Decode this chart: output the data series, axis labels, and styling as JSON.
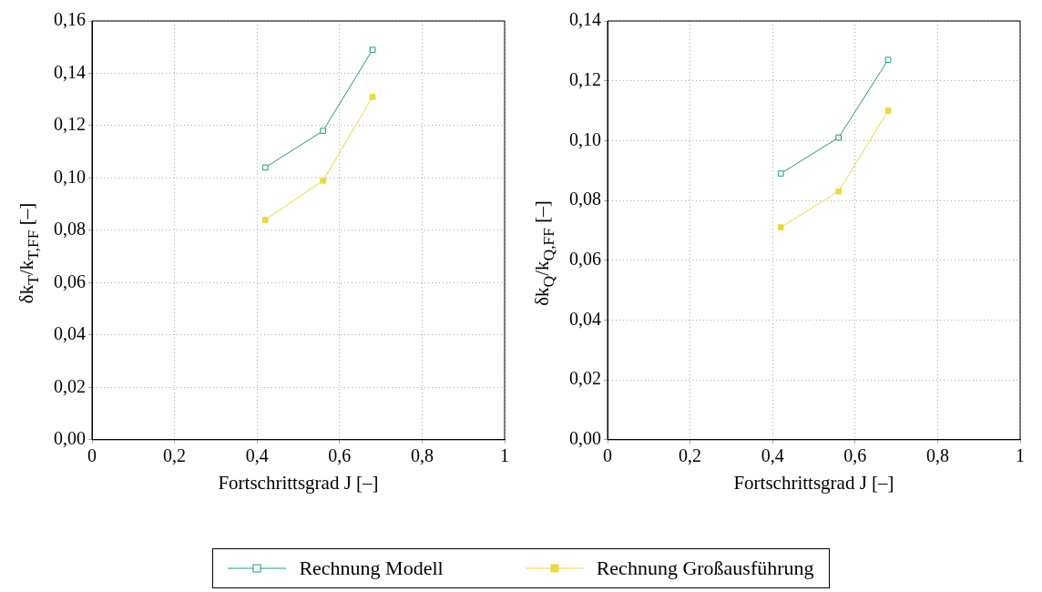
{
  "chart_data": [
    {
      "type": "line",
      "xlabel": "Fortschrittsgrad J [–]",
      "ylabel": "δk$_{T}$/k$_{T,FF}$ [–]",
      "x": [
        0.42,
        0.56,
        0.68
      ],
      "xlim": [
        0,
        1
      ],
      "xticks": [
        {
          "value": 0,
          "label": "0"
        },
        {
          "value": 0.2,
          "label": "0,2"
        },
        {
          "value": 0.4,
          "label": "0,4"
        },
        {
          "value": 0.6,
          "label": "0,6"
        },
        {
          "value": 0.8,
          "label": "0,8"
        },
        {
          "value": 1,
          "label": "1"
        }
      ],
      "ylim": [
        0,
        0.16
      ],
      "yticks": [
        {
          "value": 0,
          "label": "0,00"
        },
        {
          "value": 0.02,
          "label": "0,02"
        },
        {
          "value": 0.04,
          "label": "0,04"
        },
        {
          "value": 0.06,
          "label": "0,06"
        },
        {
          "value": 0.08,
          "label": "0,08"
        },
        {
          "value": 0.1,
          "label": "0,10"
        },
        {
          "value": 0.12,
          "label": "0,12"
        },
        {
          "value": 0.14,
          "label": "0,14"
        },
        {
          "value": 0.16,
          "label": "0,16"
        }
      ],
      "grid": true,
      "marker": "square",
      "legend": "bottom",
      "series": [
        {
          "name": "Rechnung Modell",
          "color": "#1a9e72",
          "values": [
            0.104,
            0.118,
            0.149
          ]
        },
        {
          "name": "Rechnung Großausführung",
          "color": "#ead93c",
          "values": [
            0.084,
            0.099,
            0.131
          ]
        }
      ]
    },
    {
      "type": "line",
      "xlabel": "Fortschrittsgrad J [–]",
      "ylabel": "δk$_{Q}$/k$_{Q,FF}$ [–]",
      "x": [
        0.42,
        0.56,
        0.68
      ],
      "xlim": [
        0,
        1
      ],
      "xticks": [
        {
          "value": 0,
          "label": "0"
        },
        {
          "value": 0.2,
          "label": "0,2"
        },
        {
          "value": 0.4,
          "label": "0,4"
        },
        {
          "value": 0.6,
          "label": "0,6"
        },
        {
          "value": 0.8,
          "label": "0,8"
        },
        {
          "value": 1,
          "label": "1"
        }
      ],
      "ylim": [
        0,
        0.14
      ],
      "yticks": [
        {
          "value": 0,
          "label": "0,00"
        },
        {
          "value": 0.02,
          "label": "0,02"
        },
        {
          "value": 0.04,
          "label": "0,04"
        },
        {
          "value": 0.06,
          "label": "0,06"
        },
        {
          "value": 0.08,
          "label": "0,08"
        },
        {
          "value": 0.1,
          "label": "0,10"
        },
        {
          "value": 0.12,
          "label": "0,12"
        },
        {
          "value": 0.14,
          "label": "0,14"
        }
      ],
      "grid": true,
      "marker": "square",
      "series": [
        {
          "color": "#1a9e72",
          "values": [
            0.089,
            0.101,
            0.127
          ]
        },
        {
          "color": "#ead93c",
          "values": [
            0.071,
            0.083,
            0.11
          ]
        }
      ]
    }
  ]
}
